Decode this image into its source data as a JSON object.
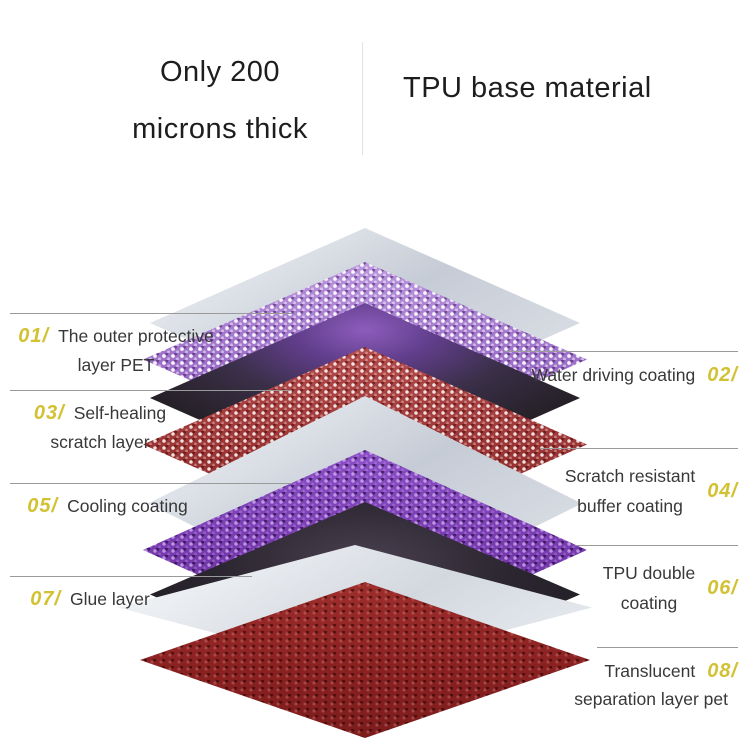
{
  "header": {
    "thickness_title": [
      "Only 200",
      "microns thick"
    ],
    "material_title": "TPU base material"
  },
  "labels_left": [
    {
      "num": "01/",
      "lines": [
        "The outer protective",
        "layer PET"
      ]
    },
    {
      "num": "03/",
      "lines": [
        "Self-healing",
        "scratch layer"
      ]
    },
    {
      "num": "05/",
      "lines": [
        "Cooling coating"
      ]
    },
    {
      "num": "07/",
      "lines": [
        "Glue layer"
      ]
    }
  ],
  "labels_right": [
    {
      "num": "02/",
      "lines": [
        "Water driving coating"
      ]
    },
    {
      "num": "04/",
      "lines": [
        "Scratch resistant",
        "buffer coating"
      ]
    },
    {
      "num": "06/",
      "lines": [
        "TPU double",
        "coating"
      ]
    },
    {
      "num": "08/",
      "lines": [
        "Translucent",
        "separation layer pet"
      ]
    }
  ],
  "diagram": {
    "layers": [
      {
        "name": "outer-pet-sheet",
        "type": "sheet",
        "tone": "silver",
        "hex": "#ccd2da"
      },
      {
        "name": "water-driving-mesh",
        "type": "mesh",
        "tone": "light-purple",
        "hex": "#9a74c4"
      },
      {
        "name": "self-healing-sheet",
        "type": "sheet",
        "tone": "black-glow",
        "hex": "#2a2430"
      },
      {
        "name": "scratch-buffer-mesh",
        "type": "mesh",
        "tone": "red",
        "hex": "#a23a3a"
      },
      {
        "name": "cooling-sheet",
        "type": "sheet",
        "tone": "silver",
        "hex": "#ccd2da"
      },
      {
        "name": "tpu-double-mesh",
        "type": "mesh",
        "tone": "dark-purple",
        "hex": "#7a3eb2"
      },
      {
        "name": "glue-sheet",
        "type": "sheet",
        "tone": "black",
        "hex": "#2b262c"
      },
      {
        "name": "separation-sheet",
        "type": "sheet",
        "tone": "white",
        "hex": "#e9edf1"
      },
      {
        "name": "base-mesh",
        "type": "mesh",
        "tone": "dark-red",
        "hex": "#8e2424"
      }
    ]
  },
  "colors": {
    "number_accent": "#d2c233",
    "label_text": "#383838",
    "leader_line": "#9a9a9a",
    "heading_text": "#1d1d1d",
    "background": "#ffffff"
  }
}
